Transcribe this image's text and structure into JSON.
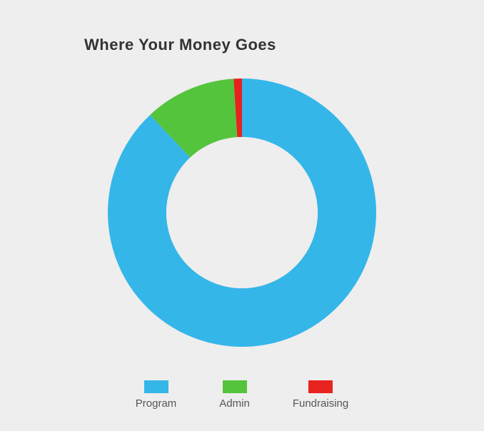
{
  "title": "Where Your Money Goes",
  "title_fontsize": 22,
  "title_color": "#333333",
  "background_color": "#eeeeee",
  "chart": {
    "type": "donut",
    "outer_radius": 188,
    "inner_radius": 106,
    "center_fill": "#eeeeee",
    "start_angle_deg": 0,
    "slices": [
      {
        "label": "Program",
        "value": 88,
        "color": "#35b6e8"
      },
      {
        "label": "Admin",
        "value": 11,
        "color": "#55c43d"
      },
      {
        "label": "Fundraising",
        "value": 1,
        "color": "#e8231f"
      }
    ]
  },
  "legend": {
    "label_color": "#555555",
    "label_fontsize": 15,
    "swatch_w": 34,
    "swatch_h": 18
  }
}
